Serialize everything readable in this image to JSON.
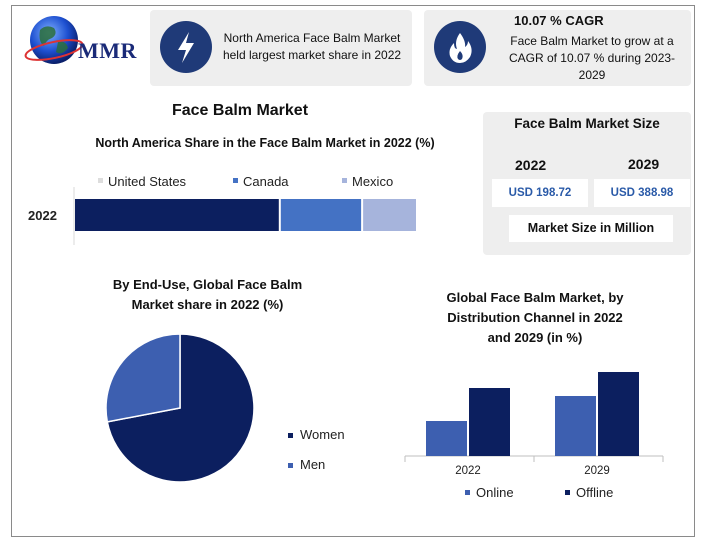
{
  "brand": {
    "logo_text": "MMR"
  },
  "header_cards": [
    {
      "icon": "lightning-icon",
      "text": "North America Face Balm Market held largest market share in 2022"
    },
    {
      "icon": "flame-icon",
      "title": "10.07 % CAGR",
      "text": "Face Balm Market to grow at a CAGR of 10.07 % during 2023-2029"
    }
  ],
  "main_title": "Face Balm Market",
  "market_size": {
    "title": "Face Balm Market Size",
    "years": [
      "2022",
      "2029"
    ],
    "values": [
      "USD 198.72",
      "USD 388.98"
    ],
    "unit_note": "Market Size in Million"
  },
  "colors": {
    "navy": "#0c1f5f",
    "blue": "#4472c4",
    "light": "#a6b4dc",
    "mid": "#3d5fb0"
  },
  "chart_data": [
    {
      "type": "bar",
      "orientation": "horizontal",
      "stacked": true,
      "title": "North America Share in the Face Balm Market in 2022 (%)",
      "categories": [
        "2022"
      ],
      "series": [
        {
          "name": "United States",
          "values": [
            60
          ]
        },
        {
          "name": "Canada",
          "values": [
            24
          ]
        },
        {
          "name": "Mexico",
          "values": [
            16
          ]
        }
      ],
      "legend": "top"
    },
    {
      "type": "pie",
      "title": "By End-Use, Global Face Balm Market share in 2022  (%)",
      "labels": [
        "Women",
        "Men"
      ],
      "values": [
        72,
        28
      ],
      "legend": "right"
    },
    {
      "type": "bar",
      "title": "Global Face Balm Market, by Distribution Channel in 2022 and 2029 (in %)",
      "categories": [
        "2022",
        "2029"
      ],
      "series": [
        {
          "name": "Online",
          "values": [
            35,
            60
          ]
        },
        {
          "name": "Offline",
          "values": [
            68,
            84
          ]
        }
      ],
      "ylim": [
        0,
        100
      ],
      "legend": "bottom"
    }
  ]
}
